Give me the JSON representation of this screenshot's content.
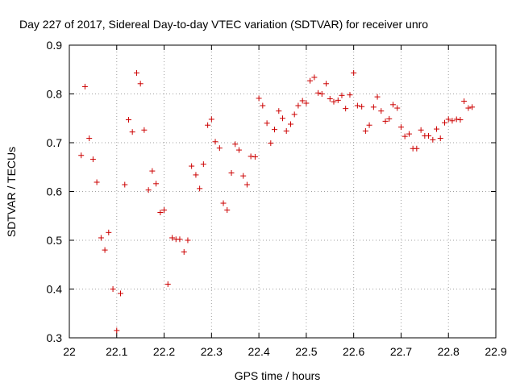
{
  "chart_data": {
    "type": "scatter",
    "title": "Day 227 of 2017, Sidereal Day-to-day VTEC variation (SDTVAR) for receiver unro",
    "xlabel": "GPS time / hours",
    "ylabel": "SDTVAR / TECUs",
    "xlim": [
      22,
      22.9
    ],
    "ylim": [
      0.3,
      0.9
    ],
    "x_ticks": [
      "22",
      "22.1",
      "22.2",
      "22.3",
      "22.4",
      "22.5",
      "22.6",
      "22.7",
      "22.8",
      "22.9"
    ],
    "y_ticks": [
      "0.3",
      "0.4",
      "0.5",
      "0.6",
      "0.7",
      "0.8",
      "0.9"
    ],
    "grid": true,
    "marker": "+",
    "series": [
      {
        "name": "SDTVAR",
        "color": "#cc0000",
        "x": [
          22.025,
          22.033,
          22.042,
          22.05,
          22.058,
          22.067,
          22.075,
          22.083,
          22.092,
          22.1,
          22.108,
          22.117,
          22.125,
          22.133,
          22.142,
          22.15,
          22.158,
          22.167,
          22.175,
          22.183,
          22.192,
          22.2,
          22.208,
          22.217,
          22.225,
          22.233,
          22.242,
          22.25,
          22.258,
          22.267,
          22.275,
          22.283,
          22.292,
          22.3,
          22.308,
          22.317,
          22.325,
          22.333,
          22.342,
          22.35,
          22.358,
          22.367,
          22.375,
          22.383,
          22.392,
          22.4,
          22.408,
          22.417,
          22.425,
          22.433,
          22.442,
          22.45,
          22.458,
          22.467,
          22.475,
          22.483,
          22.492,
          22.5,
          22.508,
          22.517,
          22.525,
          22.533,
          22.542,
          22.55,
          22.558,
          22.567,
          22.575,
          22.583,
          22.592,
          22.6,
          22.608,
          22.617,
          22.625,
          22.633,
          22.642,
          22.65,
          22.658,
          22.667,
          22.675,
          22.683,
          22.692,
          22.7,
          22.708,
          22.717,
          22.725,
          22.733,
          22.742,
          22.75,
          22.758,
          22.767,
          22.775,
          22.783,
          22.792,
          22.8,
          22.808,
          22.817,
          22.825,
          22.833,
          22.842,
          22.85
        ],
        "y": [
          0.674,
          0.815,
          0.709,
          0.666,
          0.619,
          0.505,
          0.48,
          0.516,
          0.4,
          0.315,
          0.391,
          0.614,
          0.747,
          0.722,
          0.843,
          0.821,
          0.726,
          0.603,
          0.642,
          0.616,
          0.557,
          0.562,
          0.41,
          0.505,
          0.502,
          0.502,
          0.476,
          0.5,
          0.652,
          0.634,
          0.606,
          0.656,
          0.736,
          0.748,
          0.702,
          0.689,
          0.576,
          0.562,
          0.638,
          0.697,
          0.685,
          0.632,
          0.614,
          0.672,
          0.671,
          0.791,
          0.776,
          0.74,
          0.699,
          0.727,
          0.765,
          0.75,
          0.724,
          0.738,
          0.758,
          0.776,
          0.786,
          0.781,
          0.827,
          0.834,
          0.802,
          0.8,
          0.821,
          0.79,
          0.784,
          0.787,
          0.797,
          0.77,
          0.798,
          0.843,
          0.776,
          0.774,
          0.724,
          0.736,
          0.773,
          0.794,
          0.765,
          0.744,
          0.749,
          0.778,
          0.771,
          0.732,
          0.713,
          0.718,
          0.688,
          0.688,
          0.726,
          0.714,
          0.714,
          0.706,
          0.728,
          0.709,
          0.741,
          0.748,
          0.745,
          0.748,
          0.747,
          0.785,
          0.771,
          0.773
        ]
      }
    ]
  }
}
